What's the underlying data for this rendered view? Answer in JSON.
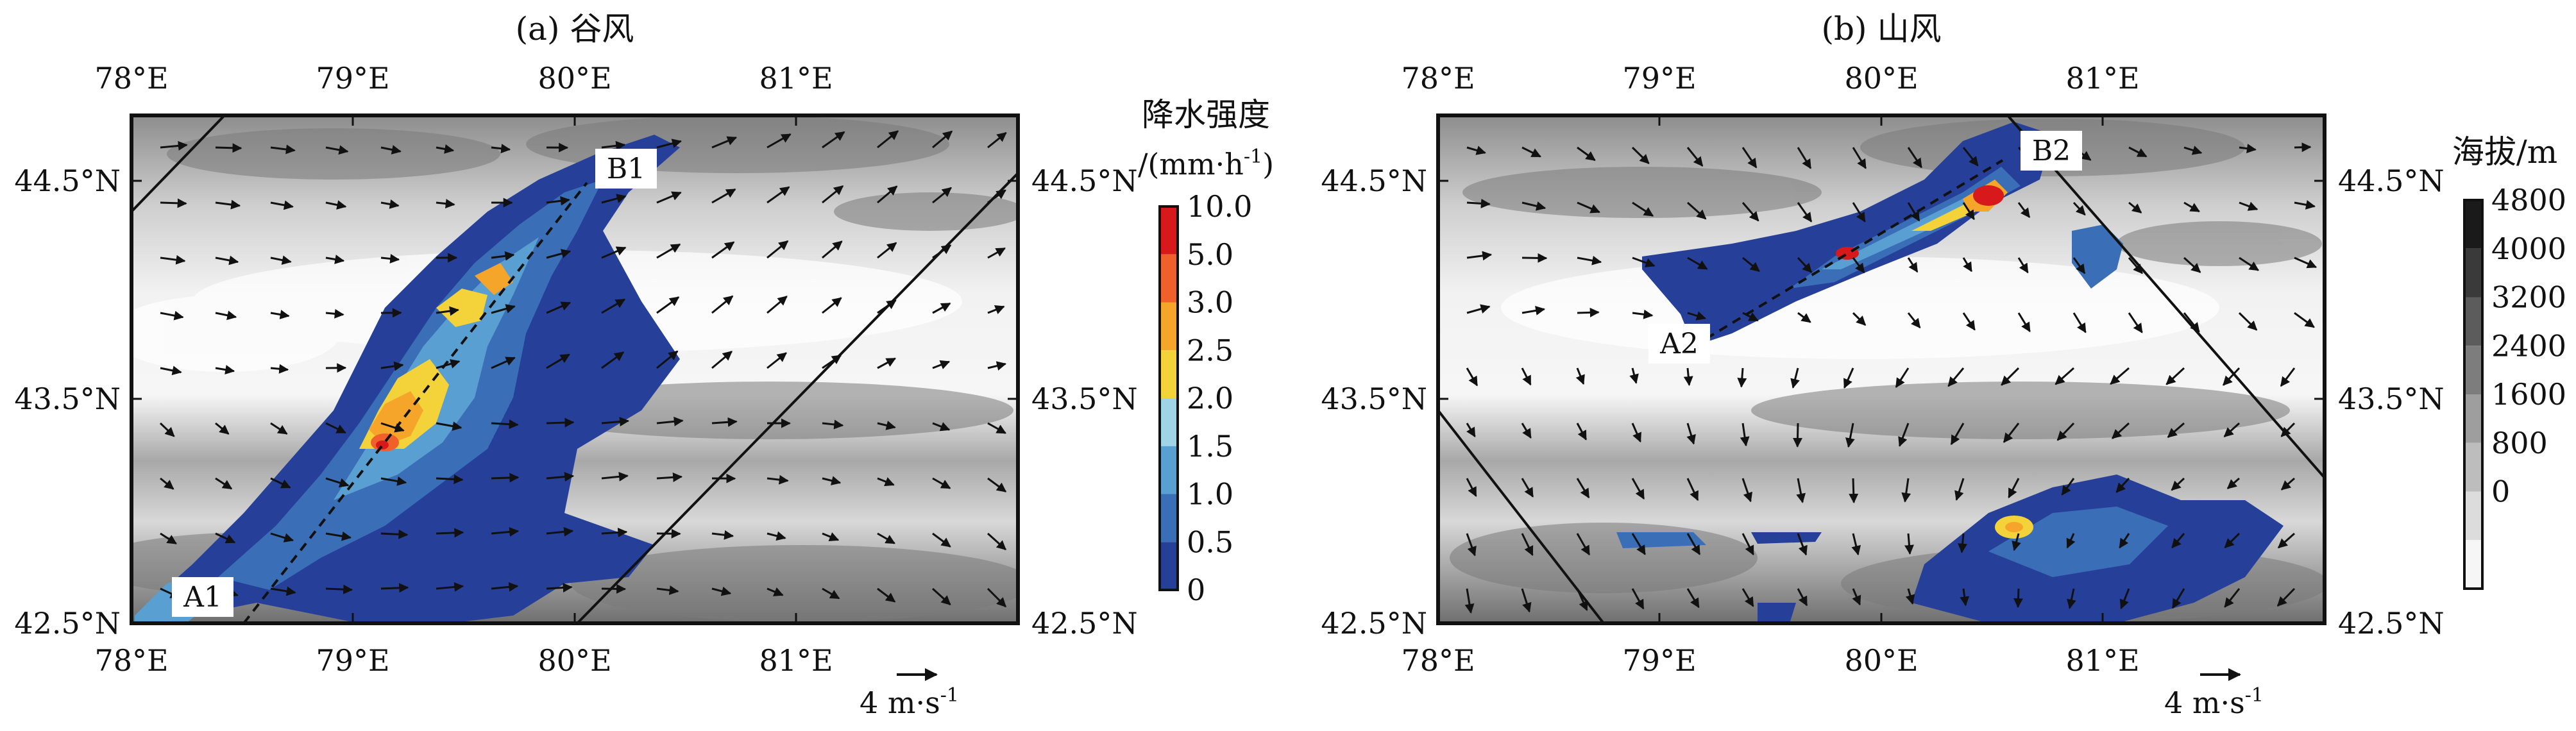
{
  "panels": [
    {
      "id": "a",
      "title": "(a) 谷风",
      "x_ticks": [
        "78°E",
        "79°E",
        "80°E",
        "81°E"
      ],
      "y_ticks": [
        "42.5°N",
        "43.5°N",
        "44.5°N"
      ],
      "point_start": "A1",
      "point_end": "B1",
      "scale_label": "4 m·s",
      "scale_sup": "-1"
    },
    {
      "id": "b",
      "title": "(b) 山风",
      "x_ticks": [
        "78°E",
        "79°E",
        "80°E",
        "81°E"
      ],
      "y_ticks": [
        "42.5°N",
        "43.5°N",
        "44.5°N"
      ],
      "point_start": "A2",
      "point_end": "B2",
      "scale_label": "4 m·s",
      "scale_sup": "-1"
    }
  ],
  "precip_colorbar": {
    "title_line1": "降水强度",
    "title_line2": "/(mm·h",
    "title_sup": "-1",
    "title_close": ")",
    "ticks": [
      "10.0",
      "5.0",
      "3.0",
      "2.5",
      "2.0",
      "1.5",
      "1.0",
      "0.5",
      "0"
    ],
    "colors": [
      "#d7191c",
      "#f0602a",
      "#f4a52a",
      "#f4d33a",
      "#9fd3e6",
      "#5a9fd1",
      "#3a6fb8",
      "#26409a"
    ]
  },
  "elevation_colorbar": {
    "title": "海拔/m",
    "ticks": [
      "4800",
      "4000",
      "3200",
      "2400",
      "1600",
      "800",
      "0"
    ],
    "colors": [
      "#1a1a1a",
      "#3a3a3a",
      "#5c5c5c",
      "#7d7d7d",
      "#9e9e9e",
      "#bdbdbd",
      "#dcdcdc",
      "#f6f6f6"
    ]
  },
  "colors": {
    "terrain_light": "#f3f3f3",
    "terrain_ridge": "#8a8a8a",
    "frame": "#111111"
  }
}
